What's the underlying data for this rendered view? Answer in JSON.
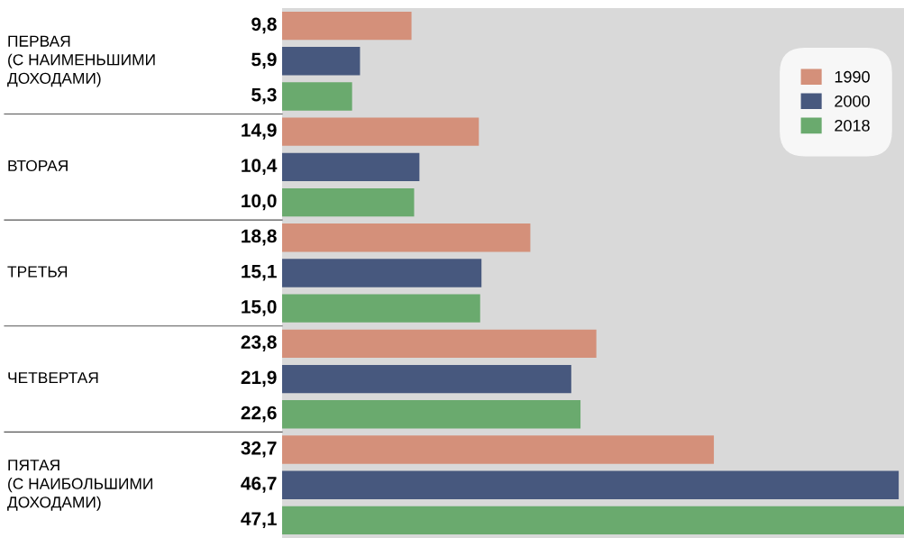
{
  "chart_data": {
    "type": "bar",
    "orientation": "horizontal",
    "legend": "top right",
    "categories": [
      "ПЕРВАЯ\n(С НАИМЕНЬШИМИ\nДОХОДАМИ)",
      "ВТОРАЯ",
      "ТРЕТЬЯ",
      "ЧЕТВЕРТАЯ",
      "ПЯТАЯ\n(С НАИБОЛЬШИМИ\nДОХОДАМИ)"
    ],
    "series": [
      {
        "name": "1990",
        "color": "#d4907a",
        "values": [
          9.8,
          14.9,
          18.8,
          23.8,
          32.7
        ],
        "value_labels": [
          "9,8",
          "14,9",
          "18,8",
          "23,8",
          "32,7"
        ]
      },
      {
        "name": "2000",
        "color": "#47587e",
        "values": [
          5.9,
          10.4,
          15.1,
          21.9,
          46.7
        ],
        "value_labels": [
          "5,9",
          "10,4",
          "15,1",
          "21,9",
          "46,7"
        ]
      },
      {
        "name": "2018",
        "color": "#6aaa6e",
        "values": [
          5.3,
          10.0,
          15.0,
          22.6,
          47.1
        ],
        "value_labels": [
          "5,3",
          "10,0",
          "15,0",
          "22,6",
          "47,1"
        ]
      }
    ]
  }
}
